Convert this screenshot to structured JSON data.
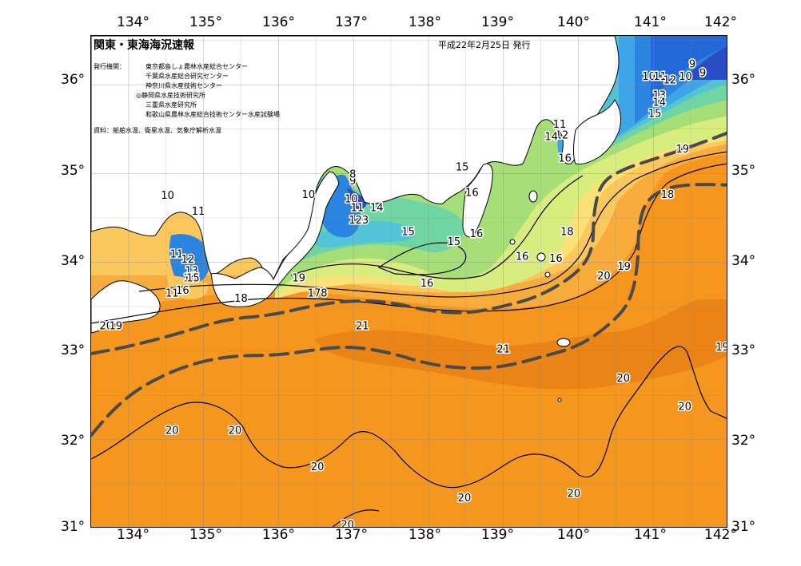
{
  "title": "関東・東海海況速報",
  "issued": "平成22年2月25日 発行",
  "issuer_label": "発行機関：",
  "issuers": [
    "東京都島しょ農林水産総合センター",
    "千葉県水産総合研究センター",
    "神奈川県水産技術センター",
    "◎静岡県水産技術研究所",
    "三重県水産研究所",
    "和歌山県農林水産総合技術センター水産試験場"
  ],
  "source": "資料：船舶水温、衛星水温、気象庁解析水温",
  "lon_labels_top": [
    "134°",
    "135°",
    "136°",
    "137°",
    "138°",
    "139°",
    "140°",
    "141°",
    "142°"
  ],
  "lon_labels_bottom": [
    "134°",
    "135°",
    "136°",
    "137°",
    "138°",
    "139°",
    "140°",
    "141°",
    "142°"
  ],
  "lat_labels_left": [
    "36°",
    "35°",
    "34°",
    "33°",
    "32°",
    "31°"
  ],
  "lat_labels_right": [
    "36°",
    "35°",
    "34°",
    "33°",
    "32°",
    "31°"
  ],
  "contour_labels": [
    {
      "text": "9",
      "lon": 141.52,
      "lat": 36.24
    },
    {
      "text": "9",
      "lon": 141.66,
      "lat": 36.14
    },
    {
      "text": "10",
      "lon": 140.94,
      "lat": 36.1
    },
    {
      "text": "11",
      "lon": 141.09,
      "lat": 36.1
    },
    {
      "text": "12",
      "lon": 141.22,
      "lat": 36.06
    },
    {
      "text": "10",
      "lon": 141.43,
      "lat": 36.1
    },
    {
      "text": "13",
      "lon": 141.08,
      "lat": 35.89
    },
    {
      "text": "14",
      "lon": 141.08,
      "lat": 35.81
    },
    {
      "text": "15",
      "lon": 141.02,
      "lat": 35.68
    },
    {
      "text": "11",
      "lon": 139.75,
      "lat": 35.56
    },
    {
      "text": "12",
      "lon": 139.78,
      "lat": 35.44
    },
    {
      "text": "14",
      "lon": 139.64,
      "lat": 35.42
    },
    {
      "text": "16",
      "lon": 139.82,
      "lat": 35.18
    },
    {
      "text": "19",
      "lon": 141.39,
      "lat": 35.28
    },
    {
      "text": "18",
      "lon": 141.19,
      "lat": 34.77
    },
    {
      "text": "15",
      "lon": 138.45,
      "lat": 35.08
    },
    {
      "text": "16",
      "lon": 138.58,
      "lat": 34.79
    },
    {
      "text": "10",
      "lon": 136.4,
      "lat": 34.77
    },
    {
      "text": "10",
      "lon": 136.97,
      "lat": 34.72
    },
    {
      "text": "9",
      "lon": 136.99,
      "lat": 34.92
    },
    {
      "text": "8",
      "lon": 136.99,
      "lat": 35.0
    },
    {
      "text": "11",
      "lon": 137.05,
      "lat": 34.62
    },
    {
      "text": "14",
      "lon": 137.31,
      "lat": 34.62
    },
    {
      "text": "123",
      "lon": 137.07,
      "lat": 34.48
    },
    {
      "text": "15",
      "lon": 137.73,
      "lat": 34.35
    },
    {
      "text": "16",
      "lon": 138.64,
      "lat": 34.33
    },
    {
      "text": "15",
      "lon": 138.34,
      "lat": 34.24
    },
    {
      "text": "18",
      "lon": 139.85,
      "lat": 34.35
    },
    {
      "text": "16",
      "lon": 139.25,
      "lat": 34.07
    },
    {
      "text": "16",
      "lon": 139.7,
      "lat": 34.05
    },
    {
      "text": "16",
      "lon": 137.98,
      "lat": 33.77
    },
    {
      "text": "19",
      "lon": 140.61,
      "lat": 33.96
    },
    {
      "text": "20",
      "lon": 140.34,
      "lat": 33.85
    },
    {
      "text": "10",
      "lon": 134.52,
      "lat": 34.76
    },
    {
      "text": "11",
      "lon": 134.93,
      "lat": 34.58
    },
    {
      "text": "11",
      "lon": 134.64,
      "lat": 34.1
    },
    {
      "text": "12",
      "lon": 134.79,
      "lat": 34.04
    },
    {
      "text": "13",
      "lon": 134.84,
      "lat": 33.91
    },
    {
      "text": "14",
      "lon": 134.82,
      "lat": 33.83
    },
    {
      "text": "15",
      "lon": 134.86,
      "lat": 33.83
    },
    {
      "text": "16",
      "lon": 134.72,
      "lat": 33.69
    },
    {
      "text": "11",
      "lon": 134.58,
      "lat": 33.66
    },
    {
      "text": "18",
      "lon": 135.5,
      "lat": 33.6
    },
    {
      "text": "19",
      "lon": 136.27,
      "lat": 33.83
    },
    {
      "text": "178",
      "lon": 136.52,
      "lat": 33.66
    },
    {
      "text": "20",
      "lon": 133.7,
      "lat": 33.29
    },
    {
      "text": "19",
      "lon": 133.83,
      "lat": 33.29
    },
    {
      "text": "21",
      "lon": 137.12,
      "lat": 33.29
    },
    {
      "text": "21",
      "lon": 139.0,
      "lat": 33.03
    },
    {
      "text": "19",
      "lon": 141.92,
      "lat": 33.05
    },
    {
      "text": "20",
      "lon": 140.6,
      "lat": 32.7
    },
    {
      "text": "20",
      "lon": 141.42,
      "lat": 32.38
    },
    {
      "text": "20",
      "lon": 134.58,
      "lat": 32.11
    },
    {
      "text": "20",
      "lon": 135.42,
      "lat": 32.11
    },
    {
      "text": "20",
      "lon": 136.52,
      "lat": 31.7
    },
    {
      "text": "20",
      "lon": 138.48,
      "lat": 31.35
    },
    {
      "text": "20",
      "lon": 139.94,
      "lat": 31.4
    },
    {
      "text": "20",
      "lon": 136.92,
      "lat": 31.05
    }
  ],
  "kuroshio_paths": [
    {
      "name": "north",
      "points": [
        [
          133.5,
          32.97
        ],
        [
          134.0,
          33.05
        ],
        [
          134.6,
          33.18
        ],
        [
          135.3,
          33.36
        ],
        [
          135.9,
          33.4
        ],
        [
          136.5,
          33.52
        ],
        [
          137.0,
          33.57
        ],
        [
          137.5,
          33.55
        ],
        [
          138.0,
          33.45
        ],
        [
          138.5,
          33.42
        ],
        [
          139.0,
          33.5
        ],
        [
          139.5,
          33.62
        ],
        [
          140.0,
          33.88
        ],
        [
          140.2,
          34.15
        ],
        [
          140.2,
          34.55
        ],
        [
          140.3,
          34.9
        ],
        [
          140.6,
          35.05
        ],
        [
          141.0,
          35.16
        ],
        [
          141.5,
          35.3
        ],
        [
          142.0,
          35.46
        ]
      ]
    },
    {
      "name": "south",
      "points": [
        [
          133.5,
          32.05
        ],
        [
          133.8,
          32.35
        ],
        [
          134.2,
          32.62
        ],
        [
          134.8,
          32.85
        ],
        [
          135.4,
          32.95
        ],
        [
          136.0,
          32.95
        ],
        [
          136.6,
          33.03
        ],
        [
          137.0,
          33.05
        ],
        [
          137.5,
          32.98
        ],
        [
          138.0,
          32.85
        ],
        [
          138.5,
          32.8
        ],
        [
          139.0,
          32.82
        ],
        [
          139.5,
          32.93
        ],
        [
          140.0,
          33.05
        ],
        [
          140.4,
          33.28
        ],
        [
          140.7,
          33.55
        ],
        [
          140.8,
          34.0
        ],
        [
          140.8,
          34.4
        ],
        [
          140.9,
          34.7
        ],
        [
          141.2,
          34.85
        ],
        [
          141.6,
          34.88
        ],
        [
          142.0,
          34.87
        ]
      ]
    }
  ],
  "colors": {
    "sst_21": "#e57d15",
    "sst_20": "#f5961f",
    "sst_19": "#f8ac3b",
    "sst_18": "#fac85d",
    "sst_17": "#fbe177",
    "sst_16": "#d9ec7e",
    "sst_15": "#a6df77",
    "sst_14": "#6fd6a3",
    "sst_13": "#53c4d7",
    "sst_12": "#3ea6e8",
    "sst_11": "#2b85e0",
    "sst_10": "#2368d8",
    "sst_9": "#2a4cc4",
    "land": "#ffffff",
    "kuroshio": "#4a4a4a"
  }
}
